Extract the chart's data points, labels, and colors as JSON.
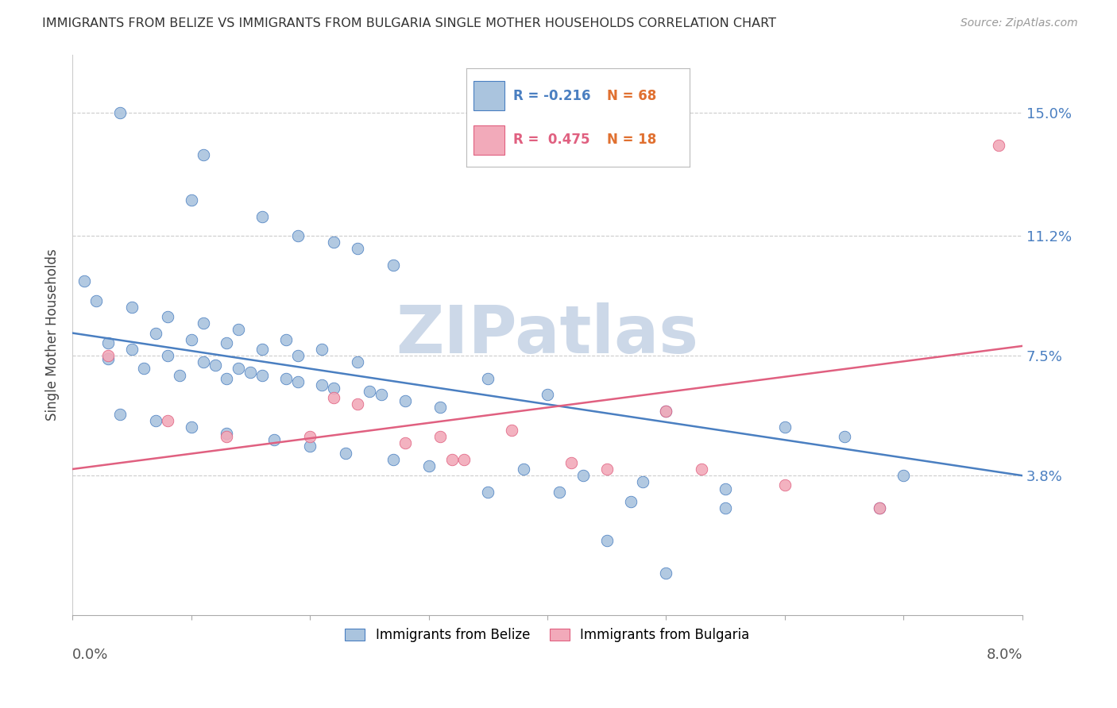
{
  "title": "IMMIGRANTS FROM BELIZE VS IMMIGRANTS FROM BULGARIA SINGLE MOTHER HOUSEHOLDS CORRELATION CHART",
  "source": "Source: ZipAtlas.com",
  "ylabel": "Single Mother Households",
  "ytick_labels": [
    "3.8%",
    "7.5%",
    "11.2%",
    "15.0%"
  ],
  "ytick_values": [
    0.038,
    0.075,
    0.112,
    0.15
  ],
  "xtick_positions": [
    0.0,
    0.01,
    0.02,
    0.03,
    0.04,
    0.05,
    0.06,
    0.07,
    0.08
  ],
  "xlim": [
    0.0,
    0.08
  ],
  "ylim": [
    -0.005,
    0.168
  ],
  "legend_blue_r": "-0.216",
  "legend_blue_n": "68",
  "legend_pink_r": "0.475",
  "legend_pink_n": "18",
  "blue_color": "#aac4de",
  "pink_color": "#f2aaba",
  "blue_line_color": "#4a7fc1",
  "pink_line_color": "#e06080",
  "blue_r_color": "#4a7fc1",
  "pink_r_color": "#e06080",
  "n_color": "#e07030",
  "watermark": "ZIPatlas",
  "watermark_color": "#ccd8e8",
  "blue_scatter_x": [
    0.004,
    0.011,
    0.01,
    0.016,
    0.019,
    0.022,
    0.024,
    0.027,
    0.001,
    0.002,
    0.005,
    0.008,
    0.011,
    0.014,
    0.018,
    0.021,
    0.003,
    0.006,
    0.009,
    0.013,
    0.007,
    0.01,
    0.013,
    0.016,
    0.019,
    0.012,
    0.015,
    0.018,
    0.021,
    0.025,
    0.003,
    0.005,
    0.008,
    0.011,
    0.014,
    0.016,
    0.019,
    0.022,
    0.026,
    0.028,
    0.031,
    0.004,
    0.007,
    0.01,
    0.013,
    0.017,
    0.02,
    0.023,
    0.027,
    0.03,
    0.024,
    0.035,
    0.04,
    0.05,
    0.06,
    0.065,
    0.038,
    0.043,
    0.048,
    0.055,
    0.07,
    0.035,
    0.041,
    0.047,
    0.055,
    0.068,
    0.045,
    0.05
  ],
  "blue_scatter_y": [
    0.15,
    0.137,
    0.123,
    0.118,
    0.112,
    0.11,
    0.108,
    0.103,
    0.098,
    0.092,
    0.09,
    0.087,
    0.085,
    0.083,
    0.08,
    0.077,
    0.074,
    0.071,
    0.069,
    0.068,
    0.082,
    0.08,
    0.079,
    0.077,
    0.075,
    0.072,
    0.07,
    0.068,
    0.066,
    0.064,
    0.079,
    0.077,
    0.075,
    0.073,
    0.071,
    0.069,
    0.067,
    0.065,
    0.063,
    0.061,
    0.059,
    0.057,
    0.055,
    0.053,
    0.051,
    0.049,
    0.047,
    0.045,
    0.043,
    0.041,
    0.073,
    0.068,
    0.063,
    0.058,
    0.053,
    0.05,
    0.04,
    0.038,
    0.036,
    0.034,
    0.038,
    0.033,
    0.033,
    0.03,
    0.028,
    0.028,
    0.018,
    0.008
  ],
  "pink_scatter_x": [
    0.003,
    0.008,
    0.013,
    0.02,
    0.022,
    0.024,
    0.028,
    0.031,
    0.032,
    0.033,
    0.037,
    0.042,
    0.045,
    0.05,
    0.053,
    0.06,
    0.068,
    0.078
  ],
  "pink_scatter_y": [
    0.075,
    0.055,
    0.05,
    0.05,
    0.062,
    0.06,
    0.048,
    0.05,
    0.043,
    0.043,
    0.052,
    0.042,
    0.04,
    0.058,
    0.04,
    0.035,
    0.028,
    0.14
  ],
  "blue_trend_x0": 0.0,
  "blue_trend_x1": 0.08,
  "blue_trend_y0": 0.082,
  "blue_trend_y1": 0.038,
  "pink_trend_x0": 0.0,
  "pink_trend_x1": 0.08,
  "pink_trend_y0": 0.04,
  "pink_trend_y1": 0.078
}
